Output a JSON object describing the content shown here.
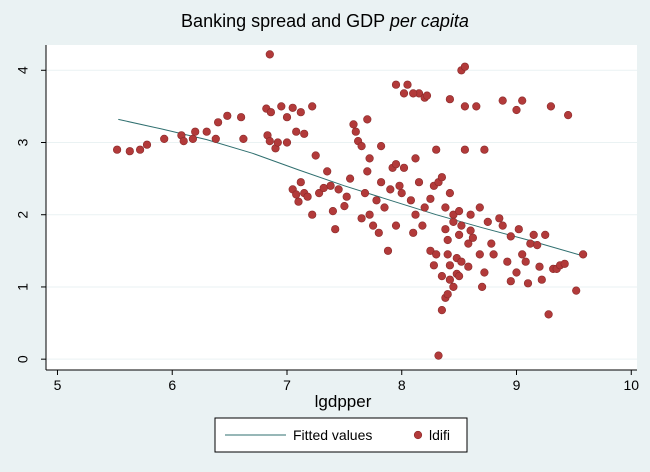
{
  "chart_data": {
    "type": "scatter",
    "title": "Banking spread and GDP",
    "title_italic": "per capita",
    "xlabel": "lgdpper",
    "ylabel": "",
    "xlim": [
      4.9,
      10.05
    ],
    "ylim": [
      -0.15,
      4.35
    ],
    "x_ticks": [
      5,
      6,
      7,
      8,
      9,
      10
    ],
    "y_ticks": [
      0,
      1,
      2,
      3,
      4
    ],
    "grid": "horizontal",
    "legend_position": "bottom",
    "colors": {
      "background": "#eaf2f3",
      "plot_bg": "#ffffff",
      "fitted_line": "#2f6f6f",
      "points": "#b23a3a",
      "points_edge": "#8a2a2a",
      "grid": "#eaf2f3"
    },
    "series": [
      {
        "name": "Fitted values",
        "kind": "line",
        "x": [
          5.53,
          5.9,
          6.3,
          6.7,
          7.1,
          7.5,
          7.9,
          8.3,
          8.7,
          9.1,
          9.58
        ],
        "y": [
          3.32,
          3.19,
          3.04,
          2.85,
          2.62,
          2.4,
          2.2,
          2.0,
          1.82,
          1.65,
          1.43
        ]
      },
      {
        "name": "ldifi",
        "kind": "scatter",
        "points": [
          [
            5.52,
            2.9
          ],
          [
            5.63,
            2.88
          ],
          [
            5.72,
            2.9
          ],
          [
            5.78,
            2.97
          ],
          [
            5.93,
            3.05
          ],
          [
            6.08,
            3.1
          ],
          [
            6.1,
            3.02
          ],
          [
            6.18,
            3.05
          ],
          [
            6.2,
            3.15
          ],
          [
            6.3,
            3.15
          ],
          [
            6.38,
            3.05
          ],
          [
            6.4,
            3.28
          ],
          [
            6.48,
            3.37
          ],
          [
            6.6,
            3.35
          ],
          [
            6.62,
            3.05
          ],
          [
            6.82,
            3.47
          ],
          [
            6.83,
            3.1
          ],
          [
            6.85,
            3.02
          ],
          [
            6.86,
            3.42
          ],
          [
            6.9,
            2.92
          ],
          [
            6.92,
            3.0
          ],
          [
            6.95,
            3.5
          ],
          [
            7.0,
            3.35
          ],
          [
            7.05,
            3.48
          ],
          [
            7.08,
            3.15
          ],
          [
            7.12,
            3.42
          ],
          [
            7.15,
            3.12
          ],
          [
            7.22,
            3.5
          ],
          [
            7.25,
            2.82
          ],
          [
            6.85,
            4.22
          ],
          [
            7.0,
            3.0
          ],
          [
            7.05,
            2.35
          ],
          [
            7.08,
            2.28
          ],
          [
            7.1,
            2.18
          ],
          [
            7.12,
            2.45
          ],
          [
            7.15,
            2.3
          ],
          [
            7.18,
            2.25
          ],
          [
            7.22,
            2.0
          ],
          [
            7.28,
            2.3
          ],
          [
            7.32,
            2.37
          ],
          [
            7.35,
            2.6
          ],
          [
            7.38,
            2.4
          ],
          [
            7.4,
            2.05
          ],
          [
            7.42,
            1.8
          ],
          [
            7.45,
            2.35
          ],
          [
            7.5,
            2.12
          ],
          [
            7.52,
            2.25
          ],
          [
            7.55,
            2.5
          ],
          [
            7.58,
            3.25
          ],
          [
            7.6,
            3.15
          ],
          [
            7.62,
            3.02
          ],
          [
            7.65,
            2.95
          ],
          [
            7.65,
            1.95
          ],
          [
            7.68,
            2.3
          ],
          [
            7.7,
            2.6
          ],
          [
            7.7,
            3.32
          ],
          [
            7.72,
            2.0
          ],
          [
            7.72,
            2.78
          ],
          [
            7.75,
            1.85
          ],
          [
            7.78,
            2.2
          ],
          [
            7.8,
            1.75
          ],
          [
            7.82,
            2.45
          ],
          [
            7.82,
            2.95
          ],
          [
            7.85,
            2.1
          ],
          [
            7.88,
            1.5
          ],
          [
            7.9,
            2.35
          ],
          [
            7.92,
            2.65
          ],
          [
            7.95,
            2.7
          ],
          [
            7.95,
            1.85
          ],
          [
            7.95,
            3.8
          ],
          [
            7.98,
            2.4
          ],
          [
            8.0,
            2.3
          ],
          [
            8.02,
            2.65
          ],
          [
            8.02,
            3.68
          ],
          [
            8.05,
            3.8
          ],
          [
            8.08,
            2.2
          ],
          [
            8.1,
            1.75
          ],
          [
            8.12,
            2.0
          ],
          [
            8.12,
            2.78
          ],
          [
            8.15,
            3.68
          ],
          [
            8.15,
            2.45
          ],
          [
            8.18,
            1.85
          ],
          [
            8.2,
            2.1
          ],
          [
            8.2,
            3.62
          ],
          [
            8.22,
            3.65
          ],
          [
            8.25,
            2.22
          ],
          [
            8.25,
            1.5
          ],
          [
            8.28,
            2.4
          ],
          [
            8.28,
            1.3
          ],
          [
            8.3,
            1.45
          ],
          [
            8.3,
            2.9
          ],
          [
            8.32,
            0.05
          ],
          [
            8.32,
            2.45
          ],
          [
            8.35,
            2.52
          ],
          [
            8.35,
            1.15
          ],
          [
            8.35,
            0.68
          ],
          [
            8.38,
            2.1
          ],
          [
            8.38,
            1.8
          ],
          [
            8.38,
            0.85
          ],
          [
            8.4,
            1.65
          ],
          [
            8.4,
            1.45
          ],
          [
            8.4,
            0.9
          ],
          [
            8.42,
            2.3
          ],
          [
            8.42,
            1.3
          ],
          [
            8.42,
            1.1
          ],
          [
            8.45,
            2.0
          ],
          [
            8.45,
            1.9
          ],
          [
            8.45,
            1.0
          ],
          [
            8.48,
            1.4
          ],
          [
            8.48,
            1.18
          ],
          [
            8.5,
            1.72
          ],
          [
            8.5,
            1.15
          ],
          [
            8.5,
            2.05
          ],
          [
            8.52,
            1.85
          ],
          [
            8.52,
            1.35
          ],
          [
            8.52,
            4.0
          ],
          [
            8.55,
            4.05
          ],
          [
            8.55,
            2.9
          ],
          [
            8.55,
            3.5
          ],
          [
            8.58,
            1.6
          ],
          [
            8.58,
            1.28
          ],
          [
            8.6,
            1.78
          ],
          [
            8.6,
            2.0
          ],
          [
            8.62,
            1.68
          ],
          [
            8.65,
            3.5
          ],
          [
            8.68,
            2.1
          ],
          [
            8.68,
            1.45
          ],
          [
            8.7,
            1.0
          ],
          [
            8.72,
            2.9
          ],
          [
            8.72,
            1.2
          ],
          [
            8.75,
            1.9
          ],
          [
            8.78,
            1.6
          ],
          [
            8.8,
            1.45
          ],
          [
            8.85,
            1.95
          ],
          [
            8.88,
            3.58
          ],
          [
            8.88,
            1.85
          ],
          [
            8.92,
            1.35
          ],
          [
            8.95,
            1.7
          ],
          [
            8.95,
            1.08
          ],
          [
            9.0,
            1.2
          ],
          [
            9.02,
            1.8
          ],
          [
            9.05,
            3.58
          ],
          [
            9.05,
            1.45
          ],
          [
            9.08,
            1.35
          ],
          [
            9.1,
            1.05
          ],
          [
            9.12,
            1.6
          ],
          [
            9.15,
            1.72
          ],
          [
            9.18,
            1.58
          ],
          [
            9.2,
            1.28
          ],
          [
            9.22,
            1.1
          ],
          [
            9.25,
            1.72
          ],
          [
            9.28,
            0.62
          ],
          [
            9.3,
            3.5
          ],
          [
            9.32,
            1.25
          ],
          [
            9.35,
            1.25
          ],
          [
            9.38,
            1.3
          ],
          [
            9.42,
            1.32
          ],
          [
            9.45,
            3.38
          ],
          [
            9.52,
            0.95
          ],
          [
            9.58,
            1.45
          ],
          [
            9.0,
            3.45
          ],
          [
            8.42,
            3.6
          ],
          [
            8.1,
            3.68
          ]
        ]
      }
    ]
  }
}
